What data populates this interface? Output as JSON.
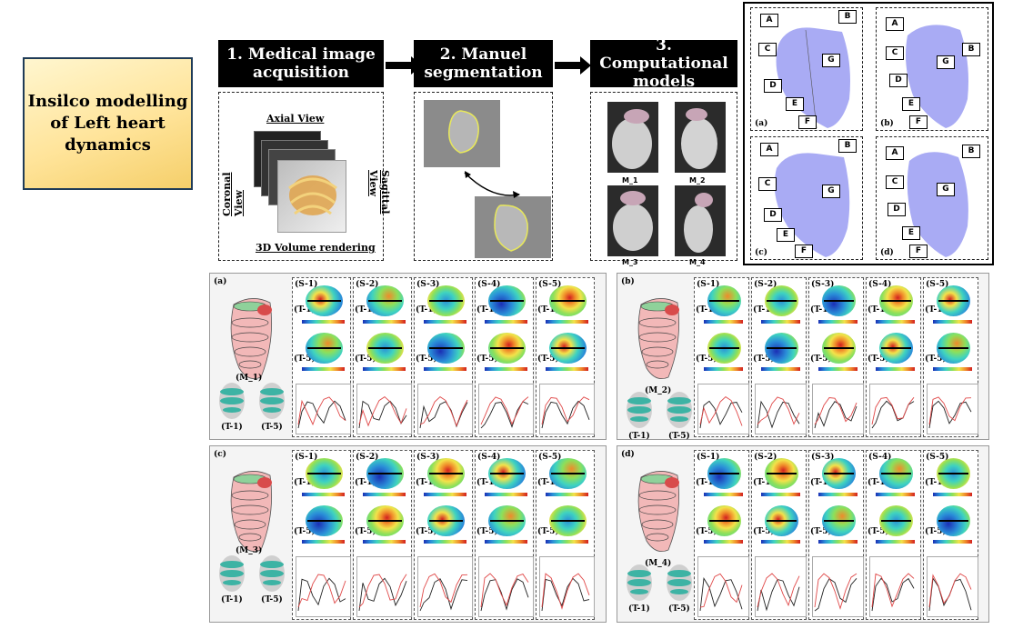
{
  "title": "Insilco modelling of Left heart dynamics",
  "steps": [
    {
      "label": "1. Medical image acquisition"
    },
    {
      "label": "2. Manuel segmentation"
    },
    {
      "label": "3. Computational models"
    }
  ],
  "acquisition": {
    "axial": "Axial View",
    "coronal": "Coronal View",
    "sagittal": "Sagittal View",
    "volume": "3D Volume rendering"
  },
  "models": [
    "M_1",
    "M_2",
    "M_3",
    "M_4"
  ],
  "geometry_panels": {
    "subpanels": [
      "(a)",
      "(b)",
      "(c)",
      "(d)"
    ],
    "labels": [
      "A",
      "B",
      "C",
      "D",
      "E",
      "F",
      "G"
    ]
  },
  "results": [
    {
      "panel": "(a)",
      "model": "(M_1)"
    },
    {
      "panel": "(b)",
      "model": "(M_2)"
    },
    {
      "panel": "(c)",
      "model": "(M_3)"
    },
    {
      "panel": "(d)",
      "model": "(M_4)"
    }
  ],
  "sections": [
    "(S-1)",
    "(S-2)",
    "(S-3)",
    "(S-4)",
    "(S-5)"
  ],
  "times": {
    "t1": "(T-1)",
    "t5": "(T-5)"
  },
  "colors": {
    "accent": "#ffe49a",
    "border": "#1f3b57",
    "heart": "#9a9cf2"
  }
}
